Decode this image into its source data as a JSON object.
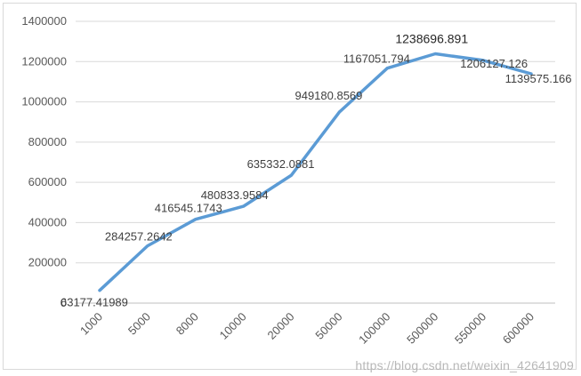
{
  "chart_data": {
    "type": "line",
    "categories": [
      "1000",
      "5000",
      "8000",
      "10000",
      "20000",
      "50000",
      "100000",
      "500000",
      "550000",
      "600000"
    ],
    "values": [
      63177.41989,
      284257.2642,
      416545.1743,
      480833.9584,
      635332.0881,
      949180.8569,
      1167051.794,
      1238696.891,
      1206127.126,
      1139575.166
    ],
    "data_labels": [
      "63177.41989",
      "284257.2642",
      "416545.1743",
      "480833.9584",
      "635332.0881",
      "949180.8569",
      "1167051.794",
      "1238696.891",
      "1206127.126",
      "1139575.166"
    ],
    "y_ticks": [
      "0",
      "200000",
      "400000",
      "600000",
      "800000",
      "1000000",
      "1200000",
      "1400000"
    ],
    "ylim": [
      0,
      1400000
    ],
    "grid": true,
    "line_color": "#5b9bd5",
    "title": "",
    "xlabel": "",
    "ylabel": ""
  },
  "watermark": "https://blog.csdn.net/weixin_42641909"
}
